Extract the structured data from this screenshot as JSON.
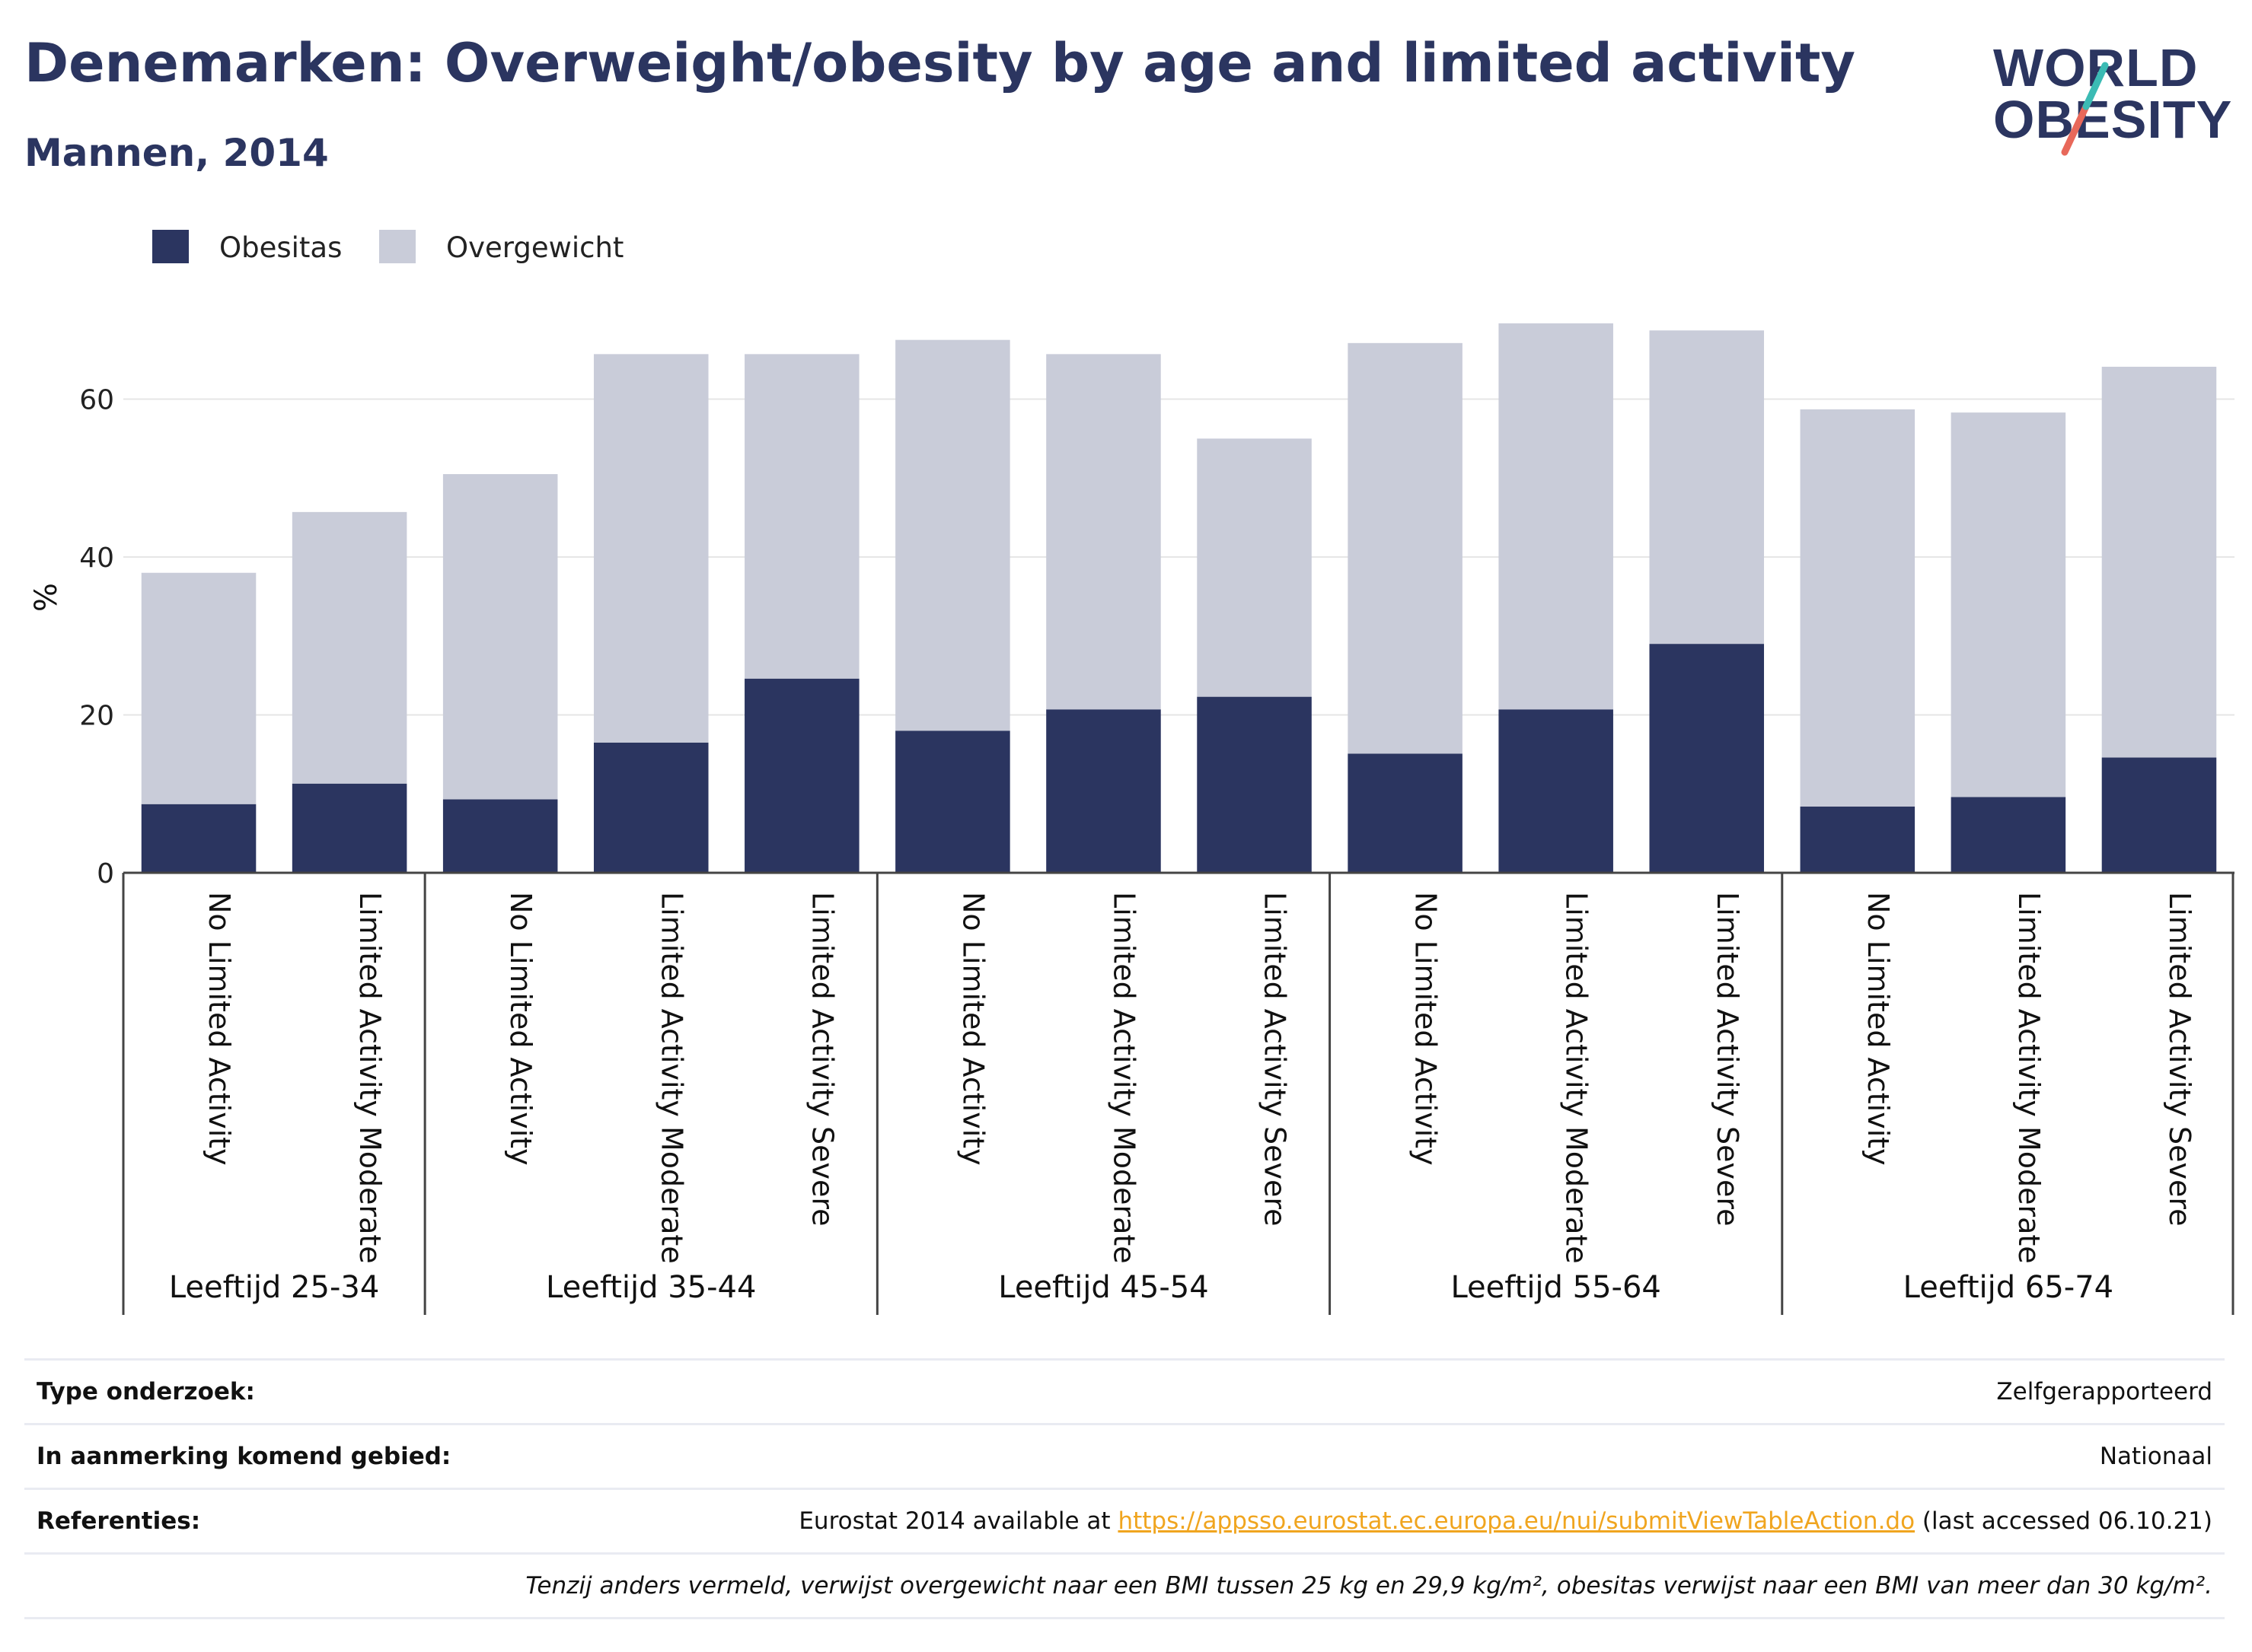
{
  "title": "Denemarken: Overweight/obesity by age and limited activity",
  "subtitle": "Mannen, 2014",
  "logo": {
    "line1": "WORLD",
    "line2": "OBESITY"
  },
  "colors": {
    "obesitas": "#2b3560",
    "overgewicht": "#c9ccd9",
    "grid": "#e6e6e6",
    "axis": "#444444",
    "link": "#f0a51f",
    "logo_teal": "#3bbbb4",
    "logo_coral": "#e8685a"
  },
  "chart_data": {
    "type": "bar",
    "stacked": true,
    "ylabel": "%",
    "ylim": [
      0,
      72
    ],
    "yticks": [
      0,
      20,
      40,
      60
    ],
    "grid": true,
    "legend_position": "top-left",
    "groups": [
      {
        "label": "Leeftijd 25-34",
        "categories": [
          "No Limited Activity",
          "Limited Activity Moderate"
        ]
      },
      {
        "label": "Leeftijd 35-44",
        "categories": [
          "No Limited Activity",
          "Limited Activity Moderate",
          "Limited Activity Severe"
        ]
      },
      {
        "label": "Leeftijd 45-54",
        "categories": [
          "No Limited Activity",
          "Limited Activity Moderate",
          "Limited Activity Severe"
        ]
      },
      {
        "label": "Leeftijd 55-64",
        "categories": [
          "No Limited Activity",
          "Limited Activity Moderate",
          "Limited Activity Severe"
        ]
      },
      {
        "label": "Leeftijd 65-74",
        "categories": [
          "No Limited Activity",
          "Limited Activity Moderate",
          "Limited Activity Severe"
        ]
      }
    ],
    "series": [
      {
        "name": "Obesitas",
        "values": [
          8.7,
          11.3,
          9.3,
          16.5,
          24.6,
          18.0,
          20.7,
          22.3,
          15.1,
          20.7,
          29.0,
          8.4,
          9.6,
          14.6
        ]
      },
      {
        "name": "Overgewicht",
        "values": [
          29.3,
          34.4,
          41.2,
          49.2,
          41.1,
          49.5,
          45.0,
          32.7,
          52.0,
          48.9,
          39.7,
          50.3,
          48.7,
          49.5
        ]
      }
    ]
  },
  "info": {
    "survey_label": "Type onderzoek:",
    "survey_value": "Zelfgerapporteerd",
    "area_label": "In aanmerking komend gebied:",
    "area_value": "Nationaal",
    "ref_label": "Referenties:",
    "ref_prefix": "Eurostat 2014 available at ",
    "ref_link": "https://appsso.eurostat.ec.europa.eu/nui/submitViewTableAction.do",
    "ref_suffix": " (last accessed 06.10.21)",
    "note": "Tenzij anders vermeld, verwijst overgewicht naar een BMI tussen 25 kg en 29,9 kg/m², obesitas verwijst naar een BMI van meer dan 30 kg/m²."
  }
}
